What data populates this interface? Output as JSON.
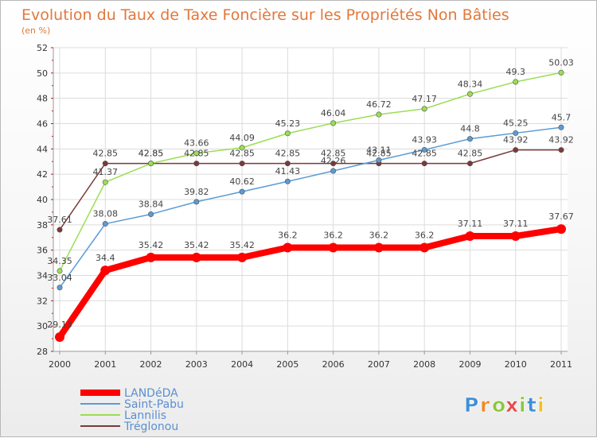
{
  "chart_data": {
    "type": "line",
    "title": "Evolution du Taux de Taxe Foncière sur les Propriétés Non Bâties",
    "subtitle": "(en %)",
    "x": [
      "2000",
      "2001",
      "2002",
      "2003",
      "2004",
      "2005",
      "2006",
      "2007",
      "2008",
      "2009",
      "2010",
      "2011"
    ],
    "yticks": [
      28,
      30,
      32,
      34,
      36,
      38,
      40,
      42,
      44,
      46,
      48,
      50,
      52
    ],
    "ylim": [
      28,
      52
    ],
    "grid": true,
    "legend_position": "bottom-left",
    "series": [
      {
        "name": "LANDéDA",
        "color": "#ff0000",
        "values": [
          29.13,
          34.4,
          35.42,
          35.42,
          35.42,
          36.2,
          36.2,
          36.2,
          36.2,
          37.11,
          37.11,
          37.67
        ],
        "labels": [
          "29.13",
          "34.4",
          "35.42",
          "35.42",
          "35.42",
          "36.2",
          "36.2",
          "36.2",
          "36.2",
          "37.11",
          "37.11",
          "37.67"
        ]
      },
      {
        "name": "Saint-Pabu",
        "color": "#5a9bd4",
        "values": [
          33.04,
          38.08,
          38.84,
          39.82,
          40.62,
          41.43,
          42.26,
          43.11,
          43.93,
          44.8,
          45.25,
          45.7
        ],
        "labels": [
          "33.04",
          "38.08",
          "38.84",
          "39.82",
          "40.62",
          "41.43",
          "42.26",
          "43.11",
          "43.93",
          "44.8",
          "45.25",
          "45.7"
        ]
      },
      {
        "name": "Lannilis",
        "color": "#9ade52",
        "values": [
          34.35,
          41.37,
          42.85,
          43.66,
          44.09,
          45.23,
          46.04,
          46.72,
          47.17,
          48.34,
          49.3,
          50.03
        ],
        "labels": [
          "34.35",
          "41.37",
          "42.85",
          "43.66",
          "44.09",
          "45.23",
          "46.04",
          "46.72",
          "47.17",
          "48.34",
          "49.3",
          "50.03"
        ]
      },
      {
        "name": "Tréglonou",
        "color": "#7a3a3a",
        "values": [
          37.61,
          42.85,
          42.85,
          42.85,
          42.85,
          42.85,
          42.85,
          42.85,
          42.85,
          42.85,
          43.92,
          43.92
        ],
        "labels": [
          "37.61",
          "42.85",
          "42.85",
          "42.85",
          "42.85",
          "42.85",
          "42.85",
          "42.85",
          "42.85",
          "42.85",
          "43.92",
          "43.92"
        ]
      }
    ]
  },
  "brand": {
    "letters": [
      "P",
      "r",
      "o",
      "x",
      "i",
      "t",
      "i"
    ],
    "colors": [
      "#3d8fd6",
      "#f08a24",
      "#8cc63f",
      "#e54b4b",
      "#8cc63f",
      "#3d8fd6",
      "#f0c020"
    ]
  }
}
